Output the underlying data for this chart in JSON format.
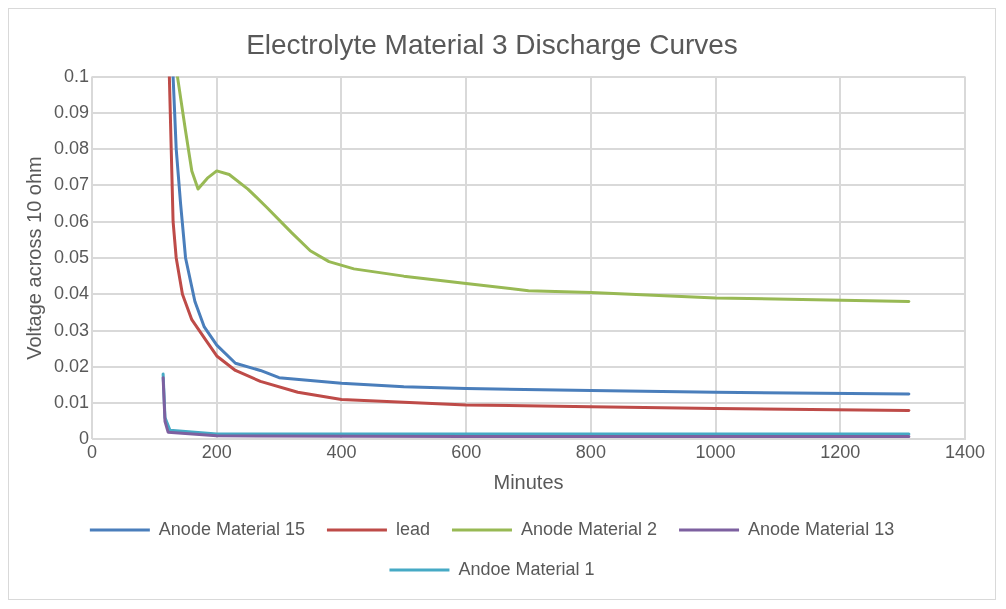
{
  "chart_data": {
    "type": "line",
    "title": "Electrolyte Material 3 Discharge Curves",
    "xlabel": "Minutes",
    "ylabel": "Voltage across 10 ohm",
    "xlim": [
      0,
      1400
    ],
    "xticks": [
      0,
      200,
      400,
      600,
      800,
      1000,
      1200,
      1400
    ],
    "ylim": [
      0,
      0.1
    ],
    "yticks": [
      0,
      0.01,
      0.02,
      0.03,
      0.04,
      0.05,
      0.06,
      0.07,
      0.08,
      0.09,
      0.1
    ],
    "grid": true,
    "legend": "bottom",
    "marker": "none",
    "line_style": "solid",
    "series": [
      {
        "name": "Anode Material 15",
        "color": "#4a7ebb",
        "x": [
          130,
          135,
          142,
          150,
          165,
          180,
          200,
          230,
          270,
          300,
          400,
          500,
          600,
          800,
          1000,
          1310
        ],
        "values": [
          0.1,
          0.08,
          0.065,
          0.05,
          0.038,
          0.031,
          0.026,
          0.021,
          0.019,
          0.017,
          0.0155,
          0.0145,
          0.014,
          0.0135,
          0.013,
          0.0125
        ]
      },
      {
        "name": "lead",
        "color": "#be4b48",
        "x": [
          124,
          127,
          130,
          135,
          145,
          160,
          180,
          200,
          230,
          270,
          330,
          400,
          600,
          800,
          1000,
          1310
        ],
        "values": [
          0.1,
          0.08,
          0.06,
          0.05,
          0.04,
          0.033,
          0.028,
          0.023,
          0.019,
          0.016,
          0.013,
          0.011,
          0.0095,
          0.009,
          0.0085,
          0.008
        ]
      },
      {
        "name": "Anode Material 2",
        "color": "#98b954",
        "x": [
          137,
          150,
          160,
          170,
          185,
          200,
          220,
          250,
          280,
          320,
          350,
          380,
          420,
          500,
          600,
          700,
          800,
          1000,
          1310
        ],
        "values": [
          0.1,
          0.085,
          0.074,
          0.069,
          0.072,
          0.074,
          0.073,
          0.069,
          0.064,
          0.057,
          0.052,
          0.049,
          0.047,
          0.045,
          0.043,
          0.041,
          0.0405,
          0.039,
          0.038
        ]
      },
      {
        "name": "Anode Material 13",
        "color": "#7d60a0",
        "x": [
          114,
          117,
          122,
          200,
          600,
          1000,
          1310
        ],
        "values": [
          0.017,
          0.005,
          0.002,
          0.001,
          0.0008,
          0.0008,
          0.0008
        ]
      },
      {
        "name": "Andoe Material 1",
        "color": "#46aac5",
        "x": [
          114,
          117,
          125,
          200,
          600,
          1000,
          1310
        ],
        "values": [
          0.018,
          0.006,
          0.0025,
          0.0015,
          0.0015,
          0.0015,
          0.0015
        ]
      }
    ]
  }
}
